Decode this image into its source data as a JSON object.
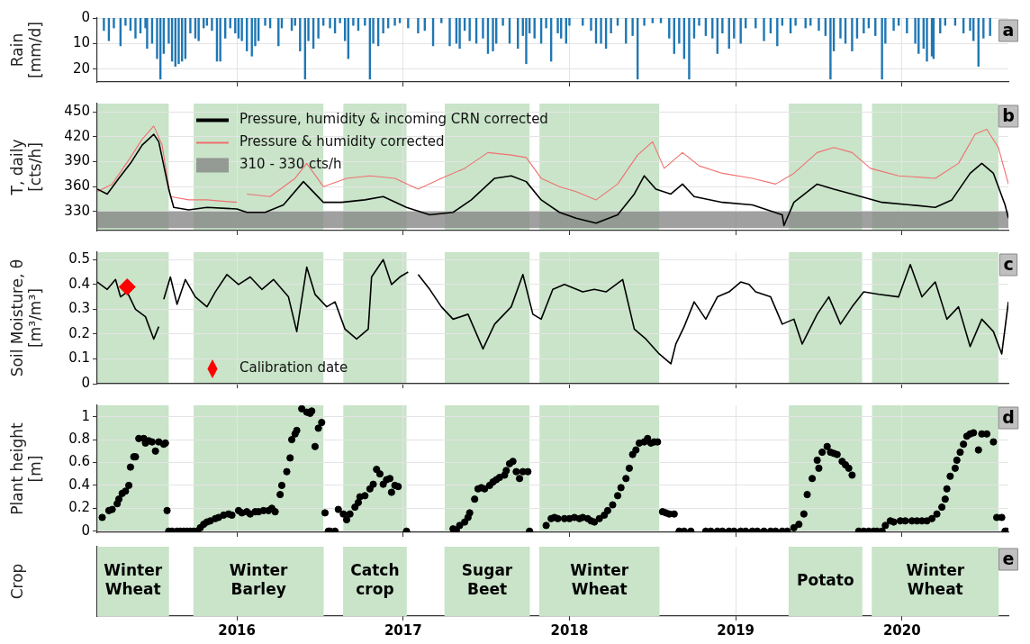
{
  "chart_data": [
    {
      "type": "bar",
      "ylabel": "Rain\n[mm/d]",
      "color": "#1f77b4",
      "x": [
        2015.2,
        2015.23,
        2015.26,
        2015.3,
        2015.33,
        2015.36,
        2015.39,
        2015.42,
        2015.45,
        2015.46,
        2015.49,
        2015.52,
        2015.54,
        2015.56,
        2015.59,
        2015.61,
        2015.63,
        2015.65,
        2015.67,
        2015.69,
        2015.72,
        2015.75,
        2015.77,
        2015.8,
        2015.82,
        2015.85,
        2015.88,
        2015.9,
        2015.93,
        2015.96,
        2015.99,
        2016.01,
        2016.03,
        2016.06,
        2016.09,
        2016.11,
        2016.13,
        2016.17,
        2016.2,
        2016.25,
        2016.27,
        2016.33,
        2016.35,
        2016.38,
        2016.41,
        2016.43,
        2016.46,
        2016.49,
        2016.52,
        2016.56,
        2016.59,
        2016.62,
        2016.65,
        2016.67,
        2016.7,
        2016.73,
        2016.77,
        2016.8,
        2016.82,
        2016.85,
        2016.88,
        2016.91,
        2016.95,
        2016.98,
        2017.03,
        2017.09,
        2017.13,
        2017.18,
        2017.23,
        2017.28,
        2017.32,
        2017.34,
        2017.37,
        2017.4,
        2017.44,
        2017.48,
        2017.51,
        2017.54,
        2017.56,
        2017.6,
        2017.64,
        2017.69,
        2017.72,
        2017.74,
        2017.76,
        2017.79,
        2017.83,
        2017.86,
        2017.89,
        2017.93,
        2017.95,
        2017.98,
        2018.0,
        2018.08,
        2018.13,
        2018.16,
        2018.19,
        2018.22,
        2018.25,
        2018.29,
        2018.34,
        2018.38,
        2018.41,
        2018.45,
        2018.5,
        2018.55,
        2018.6,
        2018.63,
        2018.66,
        2018.69,
        2018.72,
        2018.75,
        2018.78,
        2018.82,
        2018.86,
        2018.89,
        2018.92,
        2018.96,
        2018.99,
        2019.03,
        2019.06,
        2019.12,
        2019.17,
        2019.21,
        2019.25,
        2019.28,
        2019.33,
        2019.36,
        2019.42,
        2019.45,
        2019.5,
        2019.54,
        2019.57,
        2019.59,
        2019.63,
        2019.66,
        2019.7,
        2019.73,
        2019.77,
        2019.8,
        2019.84,
        2019.88,
        2019.9,
        2019.95,
        2019.98,
        2020.03,
        2020.08,
        2020.1,
        2020.13,
        2020.15,
        2020.18,
        2020.19,
        2020.23,
        2020.26,
        2020.32,
        2020.37,
        2020.41,
        2020.43,
        2020.46,
        2020.49,
        2020.53
      ],
      "values": [
        5,
        9,
        4,
        11,
        3,
        5,
        8,
        6,
        4,
        12,
        10,
        16,
        24,
        14,
        10,
        17,
        19,
        18,
        17,
        16,
        6,
        8,
        9,
        4,
        3,
        5,
        17,
        17,
        8,
        4,
        6,
        8,
        9,
        13,
        15,
        11,
        9,
        3,
        4,
        11,
        4,
        5,
        3,
        13,
        24,
        9,
        12,
        8,
        3,
        4,
        6,
        2,
        9,
        16,
        3,
        5,
        3,
        24,
        10,
        11,
        6,
        4,
        3,
        2,
        4,
        6,
        5,
        11,
        2,
        11,
        10,
        12,
        5,
        9,
        10,
        8,
        14,
        13,
        10,
        3,
        10,
        12,
        7,
        18,
        6,
        8,
        10,
        4,
        17,
        6,
        8,
        10,
        3,
        3,
        5,
        10,
        10,
        12,
        6,
        3,
        10,
        7,
        24,
        3,
        2,
        2,
        8,
        14,
        10,
        16,
        24,
        8,
        3,
        7,
        8,
        14,
        6,
        12,
        8,
        10,
        4,
        4,
        9,
        6,
        11,
        3,
        6,
        3,
        4,
        3,
        5,
        7,
        24,
        13,
        8,
        10,
        13,
        8,
        6,
        4,
        7,
        24,
        10,
        5,
        3,
        6,
        10,
        14,
        12,
        17,
        15,
        16,
        6,
        3,
        3,
        6,
        5,
        9,
        19,
        8,
        7
      ],
      "xlim": [
        2015.16,
        2020.64
      ],
      "xticks": [
        2016,
        2017,
        2018,
        2019,
        2020
      ],
      "ylim": [
        25,
        0
      ],
      "yticks": [
        0,
        10,
        20
      ],
      "grid": true,
      "tick_labels": "y",
      "annotations": [
        "a"
      ]
    },
    {
      "type": "line",
      "ylabel": "T, daily\n[cts/h]",
      "series": [
        {
          "name": "Pressure, humidity & incoming CRN corrected",
          "color": "#000000",
          "x": [
            2015.16,
            2015.22,
            2015.29,
            2015.36,
            2015.43,
            2015.5,
            2015.53,
            2015.59,
            2015.62,
            2015.71,
            2015.82,
            2016.0,
            2016.06,
            2016.17,
            2016.28,
            2016.4,
            2016.52,
            2016.63,
            2016.77,
            2016.88,
            2017.02,
            2017.16,
            2017.3,
            2017.41,
            2017.55,
            2017.65,
            2017.74,
            2017.83,
            2017.94,
            2018.04,
            2018.16,
            2018.29,
            2018.39,
            2018.45,
            2018.52,
            2018.61,
            2018.68,
            2018.75,
            2018.92,
            2019.1,
            2019.28,
            2019.29,
            2019.35,
            2019.49,
            2019.59,
            2019.7,
            2019.88,
            2020.05,
            2020.2,
            2020.3,
            2020.41,
            2020.48,
            2020.55,
            2020.62,
            2020.64
          ],
          "values": [
            357,
            351,
            370,
            388,
            410,
            423,
            414,
            357,
            335,
            332,
            335,
            333,
            329,
            329,
            338,
            366,
            341,
            341,
            344,
            348,
            335,
            326,
            329,
            344,
            370,
            373,
            366,
            344,
            329,
            322,
            316,
            326,
            351,
            373,
            357,
            351,
            363,
            348,
            341,
            338,
            326,
            313,
            341,
            363,
            357,
            351,
            341,
            338,
            335,
            344,
            376,
            388,
            376,
            338,
            322
          ]
        },
        {
          "name": "Pressure & humidity corrected",
          "color": "#f07070",
          "x": [
            2015.16,
            2015.25,
            2015.36,
            2015.43,
            2015.5,
            2015.55,
            2015.6,
            2015.71,
            2015.82,
            2016.0,
            2016.03,
            2016.06,
            2016.2,
            2016.35,
            2016.42,
            2016.52,
            2016.66,
            2016.8,
            2016.95,
            2017.09,
            2017.23,
            2017.37,
            2017.51,
            2017.65,
            2017.74,
            2017.83,
            2017.94,
            2018.04,
            2018.16,
            2018.29,
            2018.41,
            2018.5,
            2018.57,
            2018.68,
            2018.78,
            2018.92,
            2019.1,
            2019.24,
            2019.35,
            2019.49,
            2019.59,
            2019.7,
            2019.81,
            2019.98,
            2020.2,
            2020.34,
            2020.44,
            2020.51,
            2020.58,
            2020.64
          ],
          "values": [
            354,
            363,
            395,
            417,
            433,
            410,
            348,
            344,
            344,
            341,
            null,
            351,
            348,
            370,
            388,
            360,
            370,
            373,
            370,
            357,
            370,
            382,
            401,
            398,
            395,
            370,
            360,
            354,
            344,
            363,
            398,
            414,
            382,
            401,
            385,
            376,
            370,
            363,
            376,
            401,
            407,
            401,
            382,
            373,
            370,
            388,
            423,
            429,
            407,
            363
          ]
        }
      ],
      "bands": [
        {
          "axis": "x",
          "from": 2015.16,
          "to": 2015.59,
          "color": "#c9e4c9"
        },
        {
          "axis": "x",
          "from": 2015.74,
          "to": 2016.52,
          "color": "#c9e4c9"
        },
        {
          "axis": "x",
          "from": 2016.64,
          "to": 2017.02,
          "color": "#c9e4c9"
        },
        {
          "axis": "x",
          "from": 2017.25,
          "to": 2017.76,
          "color": "#c9e4c9"
        },
        {
          "axis": "x",
          "from": 2017.82,
          "to": 2018.54,
          "color": "#c9e4c9"
        },
        {
          "axis": "x",
          "from": 2019.32,
          "to": 2019.76,
          "color": "#c9e4c9"
        },
        {
          "axis": "x",
          "from": 2019.82,
          "to": 2020.58,
          "color": "#c9e4c9"
        },
        {
          "axis": "y",
          "from": 310,
          "to": 330,
          "label": "310 - 330 cts/h",
          "color": "#808080"
        }
      ],
      "xlim": [
        2015.16,
        2020.64
      ],
      "xticks": [
        2016,
        2017,
        2018,
        2019,
        2020
      ],
      "ylim": [
        307,
        460
      ],
      "yticks": [
        330,
        360,
        390,
        420,
        450
      ],
      "grid": true,
      "legend": "top left",
      "tick_labels": "y",
      "annotations": [
        "b"
      ]
    },
    {
      "type": "line",
      "ylabel": "Soil Moisture, θ\n[m³/m³]",
      "series": [
        {
          "color": "#000000",
          "x": [
            2015.16,
            2015.22,
            2015.27,
            2015.3,
            2015.34,
            2015.39,
            2015.45,
            2015.5,
            2015.53,
            2015.54,
            2015.56,
            2015.6,
            2015.64,
            2015.69,
            2015.75,
            2015.82,
            2015.87,
            2015.94,
            2016.01,
            2016.08,
            2016.15,
            2016.22,
            2016.31,
            2016.36,
            2016.42,
            2016.47,
            2016.54,
            2016.59,
            2016.65,
            2016.72,
            2016.79,
            2016.81,
            2016.88,
            2016.93,
            2016.98,
            2017.03,
            2017.05,
            2017.09,
            2017.16,
            2017.23,
            2017.3,
            2017.39,
            2017.48,
            2017.55,
            2017.65,
            2017.72,
            2017.78,
            2017.83,
            2017.9,
            2017.97,
            2018.08,
            2018.15,
            2018.22,
            2018.32,
            2018.39,
            2018.46,
            2018.54,
            2018.61,
            2018.64,
            2018.69,
            2018.75,
            2018.82,
            2018.89,
            2018.96,
            2019.03,
            2019.08,
            2019.12,
            2019.21,
            2019.28,
            2019.35,
            2019.4,
            2019.49,
            2019.56,
            2019.63,
            2019.7,
            2019.77,
            2019.86,
            2019.98,
            2020.05,
            2020.12,
            2020.2,
            2020.27,
            2020.34,
            2020.41,
            2020.48,
            2020.55,
            2020.6,
            2020.64
          ],
          "values": [
            0.41,
            0.38,
            0.42,
            0.35,
            0.37,
            0.3,
            0.27,
            0.18,
            0.23,
            null,
            0.34,
            0.43,
            0.32,
            0.42,
            0.35,
            0.31,
            0.37,
            0.44,
            0.4,
            0.43,
            0.38,
            0.42,
            0.35,
            0.21,
            0.47,
            0.36,
            0.31,
            0.33,
            0.22,
            0.18,
            0.22,
            0.43,
            0.5,
            0.4,
            0.43,
            0.45,
            null,
            0.44,
            0.38,
            0.31,
            0.26,
            0.28,
            0.14,
            0.24,
            0.31,
            0.44,
            0.28,
            0.26,
            0.38,
            0.4,
            0.37,
            0.38,
            0.37,
            0.42,
            0.22,
            0.18,
            0.12,
            0.08,
            0.16,
            0.23,
            0.33,
            0.26,
            0.35,
            0.37,
            0.41,
            0.4,
            0.37,
            0.35,
            0.24,
            0.26,
            0.16,
            0.28,
            0.35,
            0.24,
            0.31,
            0.37,
            0.36,
            0.35,
            0.48,
            0.35,
            0.41,
            0.26,
            0.31,
            0.15,
            0.26,
            0.21,
            0.12,
            0.33
          ]
        },
        {
          "type": "scatter",
          "name": "Calibration date",
          "color": "#ff0000",
          "marker": "diamond",
          "x": [
            2015.34
          ],
          "values": [
            0.39
          ]
        }
      ],
      "bands": [
        {
          "axis": "x",
          "from": 2015.16,
          "to": 2015.59,
          "color": "#c9e4c9"
        },
        {
          "axis": "x",
          "from": 2015.74,
          "to": 2016.52,
          "color": "#c9e4c9"
        },
        {
          "axis": "x",
          "from": 2016.64,
          "to": 2017.02,
          "color": "#c9e4c9"
        },
        {
          "axis": "x",
          "from": 2017.25,
          "to": 2017.76,
          "color": "#c9e4c9"
        },
        {
          "axis": "x",
          "from": 2017.82,
          "to": 2018.54,
          "color": "#c9e4c9"
        },
        {
          "axis": "x",
          "from": 2019.32,
          "to": 2019.76,
          "color": "#c9e4c9"
        },
        {
          "axis": "x",
          "from": 2019.82,
          "to": 2020.58,
          "color": "#c9e4c9"
        }
      ],
      "xlim": [
        2015.16,
        2020.64
      ],
      "xticks": [
        2016,
        2017,
        2018,
        2019,
        2020
      ],
      "ylim": [
        0,
        0.53
      ],
      "yticks": [
        0,
        0.1,
        0.2,
        0.3,
        0.4,
        0.5
      ],
      "grid": true,
      "legend": "bottom left",
      "tick_labels": "y",
      "annotations": [
        "c"
      ]
    },
    {
      "type": "scatter",
      "ylabel": "Plant height\n[m]",
      "color": "#000000",
      "marker": "circle",
      "x": [
        2015.19,
        2015.23,
        2015.25,
        2015.28,
        2015.29,
        2015.31,
        2015.33,
        2015.35,
        2015.36,
        2015.38,
        2015.39,
        2015.41,
        2015.44,
        2015.45,
        2015.47,
        2015.49,
        2015.51,
        2015.53,
        2015.56,
        2015.57,
        2015.58,
        2015.59,
        2015.61,
        2015.64,
        2015.66,
        2015.68,
        2015.7,
        2015.72,
        2015.74,
        2015.76,
        2015.78,
        2015.8,
        2015.82,
        2015.84,
        2015.87,
        2015.89,
        2015.92,
        2015.95,
        2015.97,
        2016.01,
        2016.03,
        2016.06,
        2016.08,
        2016.11,
        2016.13,
        2016.16,
        2016.19,
        2016.21,
        2016.23,
        2016.26,
        2016.27,
        2016.3,
        2016.32,
        2016.33,
        2016.35,
        2016.36,
        2016.39,
        2016.42,
        2016.44,
        2016.45,
        2016.47,
        2016.49,
        2016.51,
        2016.53,
        2016.55,
        2016.56,
        2016.59,
        2016.61,
        2016.64,
        2016.66,
        2016.68,
        2016.71,
        2016.73,
        2016.74,
        2016.77,
        2016.8,
        2016.82,
        2016.84,
        2016.86,
        2016.88,
        2016.9,
        2016.92,
        2016.93,
        2016.95,
        2016.97,
        2017.02,
        2017.3,
        2017.32,
        2017.34,
        2017.37,
        2017.39,
        2017.4,
        2017.43,
        2017.45,
        2017.47,
        2017.49,
        2017.52,
        2017.54,
        2017.56,
        2017.58,
        2017.61,
        2017.62,
        2017.64,
        2017.66,
        2017.68,
        2017.7,
        2017.72,
        2017.75,
        2017.76,
        2017.86,
        2017.89,
        2017.91,
        2017.93,
        2017.97,
        2018.0,
        2018.03,
        2018.06,
        2018.08,
        2018.11,
        2018.13,
        2018.15,
        2018.18,
        2018.21,
        2018.23,
        2018.26,
        2018.29,
        2018.31,
        2018.34,
        2018.36,
        2018.38,
        2018.4,
        2018.42,
        2018.45,
        2018.47,
        2018.49,
        2018.51,
        2018.53,
        2018.56,
        2018.58,
        2018.6,
        2018.63,
        2018.66,
        2018.69,
        2018.73,
        2018.82,
        2018.85,
        2018.89,
        2018.92,
        2018.96,
        2018.99,
        2019.03,
        2019.06,
        2019.1,
        2019.13,
        2019.17,
        2019.21,
        2019.24,
        2019.28,
        2019.31,
        2019.35,
        2019.38,
        2019.41,
        2019.43,
        2019.46,
        2019.49,
        2019.5,
        2019.52,
        2019.55,
        2019.57,
        2019.59,
        2019.61,
        2019.64,
        2019.66,
        2019.68,
        2019.7,
        2019.74,
        2019.77,
        2019.8,
        2019.83,
        2019.85,
        2019.88,
        2019.9,
        2019.93,
        2019.95,
        2019.99,
        2020.02,
        2020.06,
        2020.09,
        2020.12,
        2020.15,
        2020.18,
        2020.21,
        2020.24,
        2020.26,
        2020.27,
        2020.29,
        2020.32,
        2020.33,
        2020.35,
        2020.37,
        2020.39,
        2020.41,
        2020.43,
        2020.46,
        2020.48,
        2020.51,
        2020.55,
        2020.57,
        2020.6,
        2020.62,
        2020.63
      ],
      "values": [
        0.12,
        0.18,
        0.19,
        0.24,
        0.28,
        0.33,
        0.35,
        0.4,
        0.56,
        0.65,
        0.65,
        0.81,
        0.81,
        0.77,
        0.79,
        0.78,
        0.7,
        0.78,
        0.76,
        0.77,
        0.18,
        0,
        0,
        0,
        0,
        0,
        0,
        0,
        0,
        0,
        0.03,
        0.06,
        0.08,
        0.09,
        0.11,
        0.12,
        0.14,
        0.15,
        0.14,
        0.18,
        0.16,
        0.17,
        0.15,
        0.17,
        0.17,
        0.18,
        0.18,
        0.2,
        0.17,
        0.32,
        0.4,
        0.52,
        0.64,
        0.8,
        0.85,
        0.88,
        1.07,
        1.04,
        1.03,
        1.05,
        0.74,
        0.9,
        0.95,
        0.16,
        0,
        0,
        0,
        0.19,
        0.15,
        0.1,
        0.15,
        0.21,
        0.25,
        0.3,
        0.31,
        0.37,
        0.41,
        0.54,
        0.5,
        0.41,
        0.45,
        0.46,
        0.34,
        0.4,
        0.39,
        0,
        0.02,
        0.01,
        0.05,
        0.08,
        0.12,
        0.16,
        0.28,
        0.37,
        0.38,
        0.37,
        0.4,
        0.43,
        0.45,
        0.47,
        0.49,
        0.53,
        0.59,
        0.61,
        0.52,
        0.46,
        0.52,
        0.52,
        0,
        0.05,
        0.11,
        0.12,
        0.11,
        0.11,
        0.11,
        0.12,
        0.11,
        0.12,
        0.11,
        0.09,
        0.08,
        0.11,
        0.14,
        0.18,
        0.23,
        0.31,
        0.38,
        0.46,
        0.55,
        0.67,
        0.71,
        0.77,
        0.78,
        0.81,
        0.77,
        0.78,
        0.78,
        0.17,
        0.16,
        0.15,
        0.15,
        0,
        0,
        0,
        0,
        0,
        0,
        0,
        0,
        0,
        0,
        0,
        0,
        0,
        0,
        0,
        0,
        0,
        0,
        0.03,
        0.06,
        0.15,
        0.32,
        0.46,
        0.62,
        0.55,
        0.69,
        0.74,
        0.69,
        0.68,
        0.67,
        0.61,
        0.58,
        0.55,
        0.49,
        0,
        0,
        0,
        0,
        0,
        0,
        0.05,
        0.09,
        0.08,
        0.09,
        0.09,
        0.09,
        0.09,
        0.09,
        0.09,
        0.11,
        0.15,
        0.21,
        0.28,
        0.37,
        0.48,
        0.55,
        0.62,
        0.69,
        0.76,
        0.83,
        0.85,
        0.86,
        0.71,
        0.85,
        0.85,
        0.78,
        0.12,
        0.12,
        0,
        0
      ],
      "bands": [
        {
          "axis": "x",
          "from": 2015.16,
          "to": 2015.59,
          "color": "#c9e4c9"
        },
        {
          "axis": "x",
          "from": 2015.74,
          "to": 2016.52,
          "color": "#c9e4c9"
        },
        {
          "axis": "x",
          "from": 2016.64,
          "to": 2017.02,
          "color": "#c9e4c9"
        },
        {
          "axis": "x",
          "from": 2017.25,
          "to": 2017.76,
          "color": "#c9e4c9"
        },
        {
          "axis": "x",
          "from": 2017.82,
          "to": 2018.54,
          "color": "#c9e4c9"
        },
        {
          "axis": "x",
          "from": 2019.32,
          "to": 2019.76,
          "color": "#c9e4c9"
        },
        {
          "axis": "x",
          "from": 2019.82,
          "to": 2020.58,
          "color": "#c9e4c9"
        }
      ],
      "xlim": [
        2015.16,
        2020.64
      ],
      "xticks": [
        2016,
        2017,
        2018,
        2019,
        2020
      ],
      "ylim": [
        -0.01,
        1.1
      ],
      "yticks": [
        0,
        0.2,
        0.4,
        0.6,
        0.8,
        1
      ],
      "grid": true,
      "tick_labels": "y",
      "annotations": [
        "d"
      ]
    },
    {
      "type": "bar",
      "orientation": "horizontal",
      "ylabel": "Crop",
      "categories": [
        null
      ],
      "series": [
        {
          "name": "Winter\nWheat",
          "color": "#c9e4c9",
          "base": [
            2015.16
          ],
          "values": [
            0.43
          ]
        },
        {
          "name": "Winter\nBarley",
          "color": "#c9e4c9",
          "base": [
            2015.74
          ],
          "values": [
            0.78
          ]
        },
        {
          "name": "Catch\ncrop",
          "color": "#c9e4c9",
          "base": [
            2016.64
          ],
          "values": [
            0.38
          ]
        },
        {
          "name": "Sugar\nBeet",
          "color": "#c9e4c9",
          "base": [
            2017.25
          ],
          "values": [
            0.51
          ]
        },
        {
          "name": "Winter\nWheat",
          "color": "#c9e4c9",
          "base": [
            2017.82
          ],
          "values": [
            0.72
          ]
        },
        {
          "name": "Potato",
          "color": "#c9e4c9",
          "base": [
            2019.32
          ],
          "values": [
            0.44
          ]
        },
        {
          "name": "Winter\nWheat",
          "color": "#c9e4c9",
          "base": [
            2019.82
          ],
          "values": [
            0.76
          ]
        }
      ],
      "xlim": [
        2015.16,
        2020.64
      ],
      "xticks": [
        2016,
        2017,
        2018,
        2019,
        2020
      ],
      "grid": "x",
      "tick_labels": "x",
      "annotations": [
        "e"
      ]
    }
  ]
}
